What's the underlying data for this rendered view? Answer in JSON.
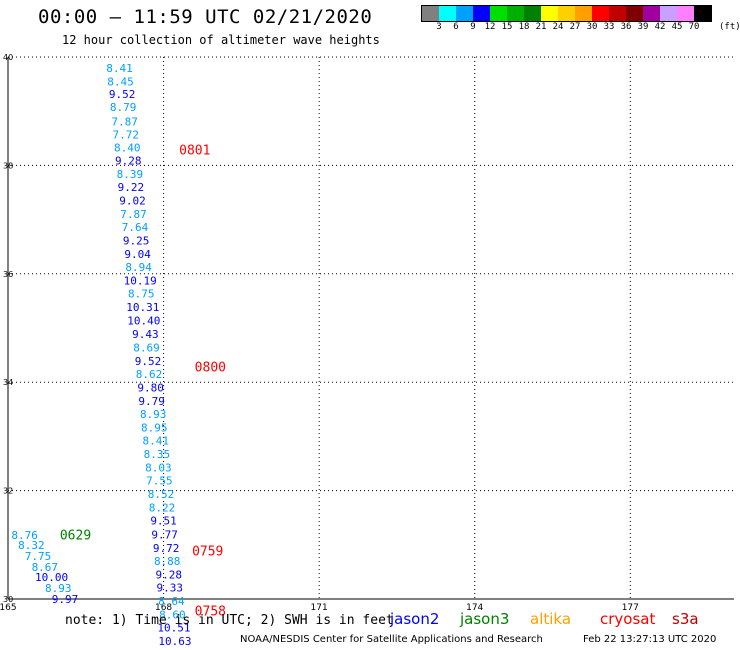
{
  "header": {
    "title": "00:00 – 11:59 UTC 02/21/2020",
    "subtitle": "12 hour collection of altimeter wave heights"
  },
  "colorbar": {
    "colors": [
      "#808080",
      "#00ffff",
      "#00a0ff",
      "#0000ff",
      "#00e000",
      "#00b000",
      "#008000",
      "#ffff00",
      "#ffd000",
      "#ffa000",
      "#ff0000",
      "#c00000",
      "#800000",
      "#a000a0",
      "#c8a0ff",
      "#ff80ff",
      "#000000"
    ],
    "labels": [
      "3",
      "6",
      "9",
      "12",
      "15",
      "18",
      "21",
      "24",
      "27",
      "30",
      "33",
      "36",
      "39",
      "42",
      "45",
      "70"
    ],
    "unit": "(ft)"
  },
  "chart_data": {
    "type": "scatter",
    "title": "00:00 – 11:59 UTC 02/21/2020",
    "xlim": [
      165,
      179
    ],
    "ylim": [
      30,
      40
    ],
    "x_ticks": [
      "165",
      "168",
      "171",
      "174",
      "177"
    ],
    "y_ticks": [
      "40",
      "38",
      "36",
      "34",
      "32",
      "30"
    ],
    "grid": true,
    "series": [
      {
        "name": "jason2",
        "points": [
          {
            "lon": 167.15,
            "lat": 39.72,
            "v": "8.41",
            "c": "#00a0ff"
          },
          {
            "lon": 167.17,
            "lat": 39.47,
            "v": "8.45",
            "c": "#00a0ff"
          },
          {
            "lon": 167.2,
            "lat": 39.24,
            "v": "9.52",
            "c": "#0000ff"
          },
          {
            "lon": 167.22,
            "lat": 39.0,
            "v": "8.79",
            "c": "#00a0ff"
          },
          {
            "lon": 167.25,
            "lat": 38.74,
            "v": "7.87",
            "c": "#00a0ff"
          },
          {
            "lon": 167.27,
            "lat": 38.5,
            "v": "7.72",
            "c": "#00a0ff"
          },
          {
            "lon": 167.3,
            "lat": 38.26,
            "v": "8.40",
            "c": "#00a0ff"
          },
          {
            "lon": 167.32,
            "lat": 38.02,
            "v": "9.28",
            "c": "#0000ff"
          },
          {
            "lon": 167.35,
            "lat": 37.77,
            "v": "8.39",
            "c": "#00a0ff"
          },
          {
            "lon": 167.37,
            "lat": 37.53,
            "v": "9.22",
            "c": "#0000ff"
          },
          {
            "lon": 167.4,
            "lat": 37.28,
            "v": "9.02",
            "c": "#0000ff"
          },
          {
            "lon": 167.42,
            "lat": 37.03,
            "v": "7.87",
            "c": "#00a0ff"
          },
          {
            "lon": 167.45,
            "lat": 36.79,
            "v": "7.64",
            "c": "#00a0ff"
          },
          {
            "lon": 167.47,
            "lat": 36.54,
            "v": "9.25",
            "c": "#0000ff"
          },
          {
            "lon": 167.5,
            "lat": 36.29,
            "v": "9.04",
            "c": "#0000ff"
          },
          {
            "lon": 167.52,
            "lat": 36.05,
            "v": "8.94",
            "c": "#00a0ff"
          },
          {
            "lon": 167.55,
            "lat": 35.8,
            "v": "10.19",
            "c": "#0000ff"
          },
          {
            "lon": 167.57,
            "lat": 35.56,
            "v": "8.75",
            "c": "#00a0ff"
          },
          {
            "lon": 167.6,
            "lat": 35.31,
            "v": "10.31",
            "c": "#0000ff"
          },
          {
            "lon": 167.62,
            "lat": 35.06,
            "v": "10.40",
            "c": "#0000ff"
          },
          {
            "lon": 167.65,
            "lat": 34.82,
            "v": "9.43",
            "c": "#0000ff"
          },
          {
            "lon": 167.67,
            "lat": 34.57,
            "v": "8.69",
            "c": "#00a0ff"
          },
          {
            "lon": 167.7,
            "lat": 34.32,
            "v": "9.52",
            "c": "#0000ff"
          },
          {
            "lon": 167.72,
            "lat": 34.08,
            "v": "8.62",
            "c": "#00a0ff"
          },
          {
            "lon": 167.75,
            "lat": 33.83,
            "v": "9.80",
            "c": "#0000ff"
          },
          {
            "lon": 167.77,
            "lat": 33.58,
            "v": "9.79",
            "c": "#0000ff"
          },
          {
            "lon": 167.8,
            "lat": 33.34,
            "v": "8.93",
            "c": "#00a0ff"
          },
          {
            "lon": 167.82,
            "lat": 33.09,
            "v": "8.95",
            "c": "#00a0ff"
          },
          {
            "lon": 167.85,
            "lat": 32.85,
            "v": "8.41",
            "c": "#00a0ff"
          },
          {
            "lon": 167.87,
            "lat": 32.6,
            "v": "8.35",
            "c": "#00a0ff"
          },
          {
            "lon": 167.9,
            "lat": 32.35,
            "v": "8.03",
            "c": "#00a0ff"
          },
          {
            "lon": 167.92,
            "lat": 32.11,
            "v": "7.55",
            "c": "#00a0ff"
          },
          {
            "lon": 167.95,
            "lat": 31.86,
            "v": "8.52",
            "c": "#00a0ff"
          },
          {
            "lon": 167.97,
            "lat": 31.61,
            "v": "8.22",
            "c": "#00a0ff"
          },
          {
            "lon": 168.0,
            "lat": 31.37,
            "v": "9.51",
            "c": "#0000ff"
          },
          {
            "lon": 168.02,
            "lat": 31.12,
            "v": "9.77",
            "c": "#0000ff"
          },
          {
            "lon": 168.05,
            "lat": 30.87,
            "v": "9.72",
            "c": "#0000ff"
          },
          {
            "lon": 168.07,
            "lat": 30.63,
            "v": "8.88",
            "c": "#00a0ff"
          },
          {
            "lon": 168.1,
            "lat": 30.38,
            "v": "9.28",
            "c": "#0000ff"
          },
          {
            "lon": 168.12,
            "lat": 30.14,
            "v": "9.33",
            "c": "#0000ff"
          },
          {
            "lon": 168.15,
            "lat": 29.89,
            "v": "8.64",
            "c": "#00a0ff"
          },
          {
            "lon": 168.17,
            "lat": 29.64,
            "v": "8.60",
            "c": "#00a0ff"
          },
          {
            "lon": 168.2,
            "lat": 29.4,
            "v": "10.51",
            "c": "#0000ff"
          },
          {
            "lon": 168.22,
            "lat": 29.15,
            "v": "10.63",
            "c": "#0000ff"
          }
        ]
      },
      {
        "name": "jason3",
        "points": [
          {
            "lon": 165.32,
            "lat": 31.11,
            "v": "8.76",
            "c": "#00a0ff"
          },
          {
            "lon": 165.45,
            "lat": 30.92,
            "v": "8.32",
            "c": "#00a0ff"
          },
          {
            "lon": 165.58,
            "lat": 30.72,
            "v": "7.75",
            "c": "#00a0ff"
          },
          {
            "lon": 165.71,
            "lat": 30.52,
            "v": "8.67",
            "c": "#00a0ff"
          },
          {
            "lon": 165.84,
            "lat": 30.33,
            "v": "10.00",
            "c": "#0000ff"
          },
          {
            "lon": 165.97,
            "lat": 30.13,
            "v": "8.93",
            "c": "#00a0ff"
          },
          {
            "lon": 166.1,
            "lat": 29.93,
            "v": "9.97",
            "c": "#0000ff"
          }
        ]
      }
    ],
    "time_labels": [
      {
        "lon": 168.3,
        "lat": 38.2,
        "text": "0801",
        "color": "#ff0000"
      },
      {
        "lon": 168.6,
        "lat": 34.2,
        "text": "0800",
        "color": "#ff0000"
      },
      {
        "lon": 166.0,
        "lat": 31.1,
        "text": "0629",
        "color": "#008000"
      },
      {
        "lon": 168.55,
        "lat": 30.8,
        "text": "0759",
        "color": "#ff0000"
      },
      {
        "lon": 168.6,
        "lat": 29.7,
        "text": "0758",
        "color": "#ff0000"
      }
    ]
  },
  "footer": {
    "note": "note: 1) Time is in UTC; 2) SWH is in feet",
    "satellites": [
      {
        "name": "jason2",
        "color": "#0000ff"
      },
      {
        "name": "jason3",
        "color": "#008000"
      },
      {
        "name": "altika",
        "color": "#ffa000"
      },
      {
        "name": "cryosat",
        "color": "#ff0000"
      },
      {
        "name": "s3a",
        "color": "#c00000"
      }
    ],
    "credit": "NOAA/NESDIS Center for Satellite Applications and Research",
    "timestamp": "Feb 22 13:27:13 UTC 2020"
  }
}
